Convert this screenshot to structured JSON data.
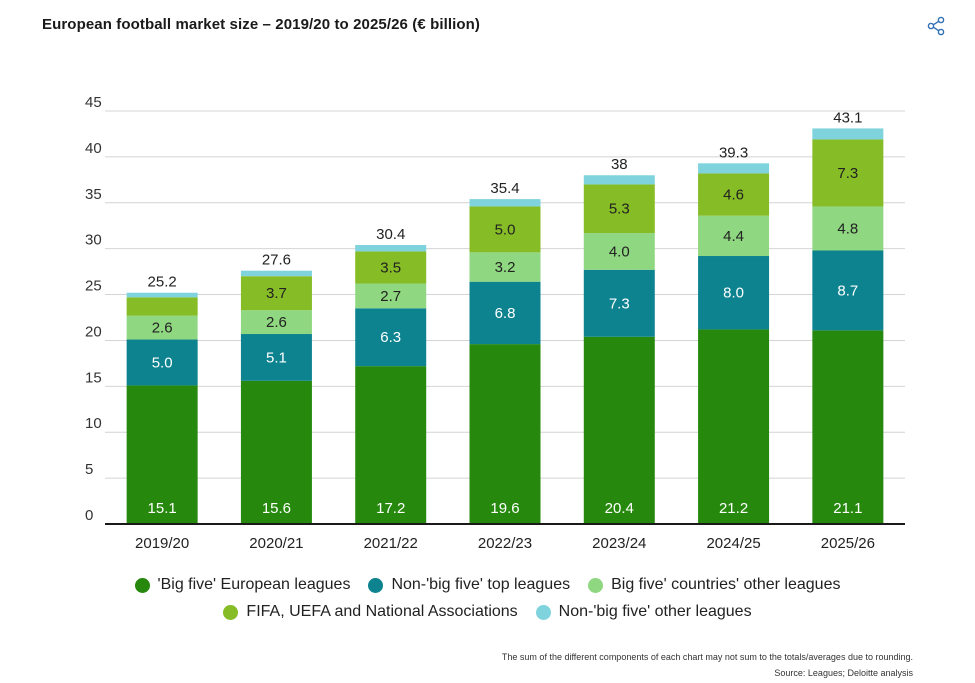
{
  "header": {
    "title": "European football market size – 2019/20 to 2025/26 (€ billion)",
    "share_icon": "share-icon"
  },
  "chart_data": {
    "type": "bar",
    "stacked": true,
    "title": "European football market size – 2019/20 to 2025/26 (€ billion)",
    "xlabel": "",
    "ylabel": "",
    "ylim": [
      0,
      45
    ],
    "yticks": [
      0,
      5,
      10,
      15,
      20,
      25,
      30,
      35,
      40,
      45
    ],
    "grid": true,
    "legend_position": "bottom",
    "categories": [
      "2019/20",
      "2020/21",
      "2021/22",
      "2022/23",
      "2023/24",
      "2024/25",
      "2025/26"
    ],
    "totals": [
      "25.2",
      "27.6",
      "30.4",
      "35.4",
      "38",
      "39.3",
      "43.1"
    ],
    "series": [
      {
        "name": "'Big five' European leagues",
        "color": "#26890d",
        "label_color": "#ffffff",
        "values": [
          15.1,
          15.6,
          17.2,
          19.6,
          20.4,
          21.2,
          21.1
        ],
        "labels": [
          "15.1",
          "15.6",
          "17.2",
          "19.6",
          "20.4",
          "21.2",
          "21.1"
        ]
      },
      {
        "name": "Non-'big five' top leagues",
        "color": "#0d8390",
        "label_color": "#ffffff",
        "values": [
          5.0,
          5.1,
          6.3,
          6.8,
          7.3,
          8.0,
          8.7
        ],
        "labels": [
          "5.0",
          "5.1",
          "6.3",
          "6.8",
          "7.3",
          "8.0",
          "8.7"
        ]
      },
      {
        "name": "Big five' countries' other leagues",
        "color": "#8fd780",
        "label_color": "#222222",
        "values": [
          2.6,
          2.6,
          2.7,
          3.2,
          4.0,
          4.4,
          4.8
        ],
        "labels": [
          "2.6",
          "2.6",
          "2.7",
          "3.2",
          "4.0",
          "4.4",
          "4.8"
        ]
      },
      {
        "name": "FIFA, UEFA and National Associations",
        "color": "#86bc25",
        "label_color": "#222222",
        "values": [
          2.0,
          3.7,
          3.5,
          5.0,
          5.3,
          4.6,
          7.3
        ],
        "labels": [
          "",
          "3.7",
          "3.5",
          "5.0",
          "5.3",
          "4.6",
          "7.3"
        ]
      },
      {
        "name": "Non-'big five' other leagues",
        "color": "#7fd3dd",
        "label_color": "#222222",
        "values": [
          0.5,
          0.6,
          0.7,
          0.8,
          1.0,
          1.1,
          1.2
        ],
        "labels": [
          "",
          "",
          "",
          "",
          "",
          "",
          ""
        ]
      }
    ]
  },
  "legend": {
    "row1": [
      "'Big five' European leagues",
      "Non-'big five' top leagues",
      "Big five' countries' other leagues"
    ],
    "row2": [
      "FIFA, UEFA and National Associations",
      "Non-'big five' other leagues"
    ]
  },
  "footer": {
    "note": "The sum of the different components of each chart may not sum to the totals/averages due to rounding.",
    "source": "Source: Leagues; Deloitte analysis"
  }
}
